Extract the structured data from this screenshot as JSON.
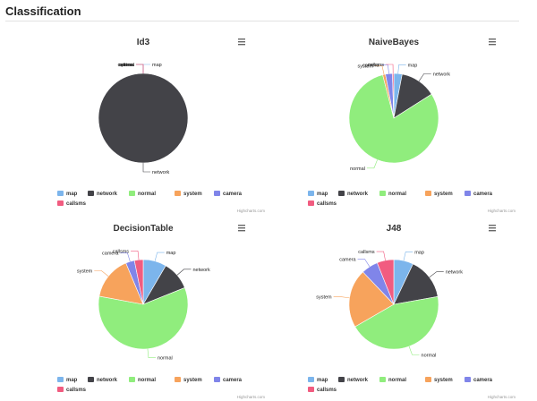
{
  "page": {
    "title": "Classification"
  },
  "colors": {
    "map": "#7cb5ec",
    "network": "#434348",
    "normal": "#90ed7d",
    "system": "#f7a35c",
    "camera": "#8085e9",
    "callsms": "#f15c80"
  },
  "icons": {
    "menu": "hamburger-menu-icon"
  },
  "credit": "Highcharts.com",
  "chart_data": [
    {
      "type": "pie",
      "title": "Id3",
      "categories": [
        "map",
        "network",
        "normal",
        "system",
        "camera",
        "callsms"
      ],
      "values": [
        0,
        100,
        0,
        0,
        0,
        0
      ],
      "legend": [
        "map",
        "network",
        "normal",
        "system",
        "camera",
        "callsms"
      ],
      "legend_position": "bottom-left"
    },
    {
      "type": "pie",
      "title": "NaiveBayes",
      "categories": [
        "map",
        "network",
        "normal",
        "system",
        "camera",
        "callsms"
      ],
      "values": [
        3,
        13,
        80,
        1,
        2.5,
        0.5
      ],
      "legend": [
        "map",
        "network",
        "normal",
        "system",
        "camera",
        "callsms"
      ],
      "legend_position": "bottom-left"
    },
    {
      "type": "pie",
      "title": "DecisionTable",
      "categories": [
        "map",
        "network",
        "normal",
        "system",
        "camera",
        "callsms"
      ],
      "values": [
        8,
        10,
        56,
        15,
        3,
        3
      ],
      "legend": [
        "map",
        "network",
        "normal",
        "system",
        "camera",
        "callsms"
      ],
      "legend_position": "bottom-left"
    },
    {
      "type": "pie",
      "title": "J48",
      "categories": [
        "map",
        "network",
        "normal",
        "system",
        "camera",
        "callsms"
      ],
      "values": [
        7,
        15,
        44,
        21,
        6,
        6
      ],
      "legend": [
        "map",
        "network",
        "normal",
        "system",
        "camera",
        "callsms"
      ],
      "legend_position": "bottom-left"
    }
  ]
}
